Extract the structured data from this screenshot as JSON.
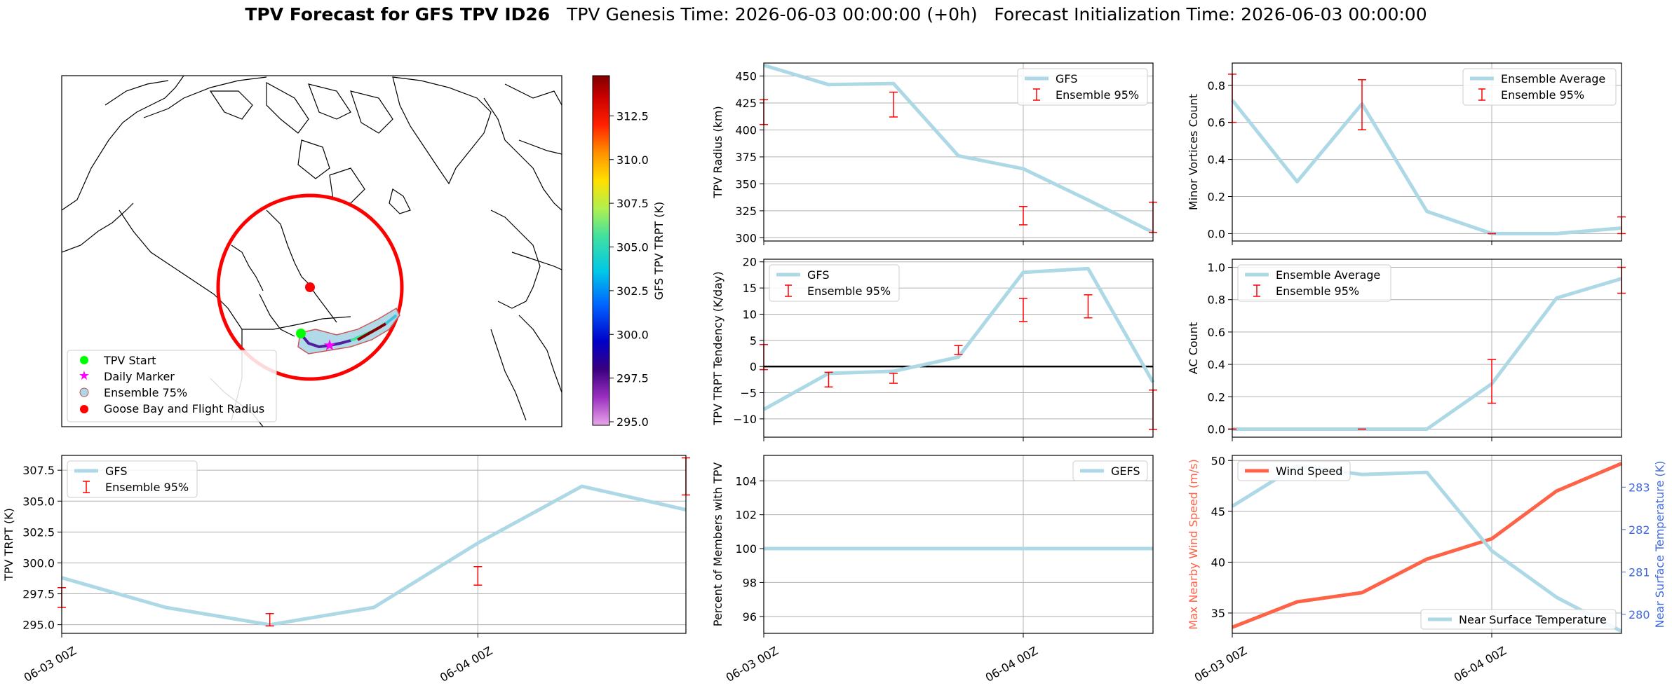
{
  "suptitle": {
    "bold": "TPV Forecast for GFS TPV ID26",
    "rest": "   TPV Genesis Time: 2026-06-03 00:00:00 (+0h)   Forecast Initialization Time: 2026-06-03 00:00:00"
  },
  "map": {
    "legend": [
      "TPV Start",
      "Daily Marker",
      "Ensemble 75%",
      "Goose Bay and Flight Radius"
    ],
    "colorbar": {
      "label": "GFS TPV TRPT (K)",
      "ticks": [
        "312.5",
        "310.0",
        "307.5",
        "305.0",
        "302.5",
        "300.0",
        "297.5",
        "295.0"
      ],
      "tick_values": [
        312.5,
        310.0,
        307.5,
        305.0,
        302.5,
        300.0,
        297.5,
        295.0
      ],
      "range": [
        294.8,
        314.8
      ]
    }
  },
  "colors": {
    "line": "#add8e6",
    "error": "#ff0000",
    "wind": "#ff6347",
    "temp_axis": "#4169e1",
    "start": "#00ff00",
    "daily": "#ff00ff"
  },
  "x_ticks": [
    "06-03 00Z",
    "06-04 00Z"
  ],
  "chart_data": [
    {
      "id": "radius",
      "type": "line",
      "ylabel": "TPV Radius (km)",
      "ylim": [
        297,
        462
      ],
      "yticks": [
        300,
        325,
        350,
        375,
        400,
        425,
        450
      ],
      "ytick_labels": [
        "300",
        "325",
        "350",
        "375",
        "400",
        "425",
        "450"
      ],
      "series": [
        {
          "name": "GFS",
          "kind": "line",
          "x": [
            0,
            6,
            12,
            18,
            24,
            30,
            36
          ],
          "y": [
            460,
            442,
            443,
            376,
            364,
            335,
            305
          ]
        },
        {
          "name": "Ensemble 95%",
          "kind": "error",
          "x": [
            0,
            12,
            24,
            36
          ],
          "lo": [
            405,
            412,
            312,
            305
          ],
          "hi": [
            428,
            435,
            329,
            333
          ]
        }
      ],
      "legend": [
        "GFS",
        "Ensemble 95%"
      ],
      "legend_pos": "upper right",
      "xlim": [
        0,
        36
      ],
      "grid": true
    },
    {
      "id": "minor",
      "type": "line",
      "ylabel": "Minor Vortices Count",
      "ylim": [
        -0.04,
        0.92
      ],
      "yticks": [
        0,
        0.2,
        0.4,
        0.6,
        0.8
      ],
      "ytick_labels": [
        "0.0",
        "0.2",
        "0.4",
        "0.6",
        "0.8"
      ],
      "series": [
        {
          "name": "Ensemble Average",
          "kind": "line",
          "x": [
            0,
            6,
            12,
            18,
            24,
            30,
            36
          ],
          "y": [
            0.72,
            0.28,
            0.7,
            0.12,
            0.0,
            0.0,
            0.03
          ]
        },
        {
          "name": "Ensemble 95%",
          "kind": "error",
          "x": [
            0,
            12,
            24,
            36
          ],
          "lo": [
            0.6,
            0.56,
            0.0,
            0.0
          ],
          "hi": [
            0.86,
            0.83,
            0.0,
            0.09
          ]
        }
      ],
      "legend": [
        "Ensemble Average",
        "Ensemble 95%"
      ],
      "legend_pos": "upper right",
      "xlim": [
        0,
        36
      ],
      "grid": true
    },
    {
      "id": "tendency",
      "type": "line",
      "ylabel": "TPV TRPT Tendency (K/day)",
      "ylim": [
        -13.5,
        20.5
      ],
      "yticks": [
        -10,
        -5,
        0,
        5,
        10,
        15,
        20
      ],
      "ytick_labels": [
        "−10",
        "−5",
        "0",
        "5",
        "10",
        "15",
        "20"
      ],
      "zero_line": true,
      "series": [
        {
          "name": "GFS",
          "kind": "line",
          "x": [
            0,
            6,
            12,
            18,
            24,
            30,
            36
          ],
          "y": [
            -8.2,
            -1.3,
            -0.9,
            1.8,
            18.0,
            18.7,
            -3.0
          ]
        },
        {
          "name": "Ensemble 95%",
          "kind": "error",
          "x": [
            0,
            6,
            12,
            18,
            24,
            30,
            36
          ],
          "lo": [
            -0.6,
            -3.9,
            -3.2,
            2.3,
            8.6,
            9.3,
            -12.0
          ],
          "hi": [
            4.2,
            -1.1,
            -1.3,
            4.0,
            13.0,
            13.7,
            -4.5
          ]
        }
      ],
      "legend": [
        "GFS",
        "Ensemble 95%"
      ],
      "legend_pos": "upper left",
      "xlim": [
        0,
        36
      ],
      "grid": true
    },
    {
      "id": "ac",
      "type": "line",
      "ylabel": "AC Count",
      "ylim": [
        -0.05,
        1.05
      ],
      "yticks": [
        0,
        0.2,
        0.4,
        0.6,
        0.8,
        1.0
      ],
      "ytick_labels": [
        "0.0",
        "0.2",
        "0.4",
        "0.6",
        "0.8",
        "1.0"
      ],
      "series": [
        {
          "name": "Ensemble Average",
          "kind": "line",
          "x": [
            0,
            6,
            12,
            18,
            24,
            30,
            36
          ],
          "y": [
            0,
            0,
            0,
            0,
            0.28,
            0.81,
            0.93
          ]
        },
        {
          "name": "Ensemble 95%",
          "kind": "error",
          "x": [
            0,
            12,
            24,
            36
          ],
          "lo": [
            0,
            0,
            0.16,
            0.84
          ],
          "hi": [
            0,
            0,
            0.43,
            1.0
          ]
        }
      ],
      "legend": [
        "Ensemble Average",
        "Ensemble 95%"
      ],
      "legend_pos": "upper left",
      "xlim": [
        0,
        36
      ],
      "grid": true
    },
    {
      "id": "trpt",
      "type": "line",
      "ylabel": "TPV TRPT (K)",
      "ylim": [
        294.3,
        308.7
      ],
      "yticks": [
        295.0,
        297.5,
        300.0,
        302.5,
        305.0,
        307.5
      ],
      "ytick_labels": [
        "295.0",
        "297.5",
        "300.0",
        "302.5",
        "305.0",
        "307.5"
      ],
      "series": [
        {
          "name": "GFS",
          "kind": "line",
          "x": [
            0,
            6,
            12,
            18,
            24,
            30,
            36
          ],
          "y": [
            298.8,
            296.4,
            295.0,
            296.4,
            301.6,
            306.2,
            304.3
          ]
        },
        {
          "name": "Ensemble 95%",
          "kind": "error",
          "x": [
            0,
            12,
            24,
            36
          ],
          "lo": [
            296.4,
            294.9,
            298.2,
            305.5
          ],
          "hi": [
            298.0,
            295.9,
            299.7,
            308.5
          ]
        }
      ],
      "legend": [
        "GFS",
        "Ensemble 95%"
      ],
      "legend_pos": "upper left",
      "xlim": [
        0,
        36
      ],
      "grid": true
    },
    {
      "id": "percent",
      "type": "line",
      "ylabel": "Percent of Members with TPV",
      "ylim": [
        95,
        105.5
      ],
      "yticks": [
        96,
        98,
        100,
        102,
        104
      ],
      "ytick_labels": [
        "96",
        "98",
        "100",
        "102",
        "104"
      ],
      "series": [
        {
          "name": "GEFS",
          "kind": "line",
          "x": [
            0,
            6,
            12,
            18,
            24,
            30,
            36
          ],
          "y": [
            100,
            100,
            100,
            100,
            100,
            100,
            100
          ]
        }
      ],
      "legend": [
        "GEFS"
      ],
      "legend_pos": "upper right",
      "xlim": [
        0,
        36
      ],
      "grid": true
    },
    {
      "id": "wind",
      "type": "line",
      "ylabel": "Max Nearby Wind Speed (m/s)",
      "ylabel2": "Near Surface Temperature (K)",
      "ylim": [
        33,
        50.5
      ],
      "ylim2": [
        279.55,
        283.75
      ],
      "yticks": [
        35,
        40,
        45,
        50
      ],
      "ytick_labels": [
        "35",
        "40",
        "45",
        "50"
      ],
      "yticks2": [
        280,
        281,
        282,
        283
      ],
      "ytick_labels2": [
        "280",
        "281",
        "282",
        "283"
      ],
      "series": [
        {
          "name": "Wind Speed",
          "kind": "line",
          "axis": "left",
          "x": [
            0,
            6,
            12,
            18,
            24,
            30,
            36
          ],
          "y": [
            33.6,
            36.1,
            37.0,
            40.3,
            42.3,
            47.0,
            49.7
          ]
        },
        {
          "name": "Near Surface Temperature",
          "kind": "line",
          "axis": "right",
          "x": [
            0,
            6,
            12,
            18,
            24,
            30,
            36
          ],
          "y": [
            282.55,
            283.5,
            283.3,
            283.35,
            281.5,
            280.4,
            279.6
          ]
        }
      ],
      "legend": [
        "Wind Speed"
      ],
      "legend2": [
        "Near Surface Temperature"
      ],
      "xlim": [
        0,
        36
      ],
      "grid": true
    }
  ]
}
